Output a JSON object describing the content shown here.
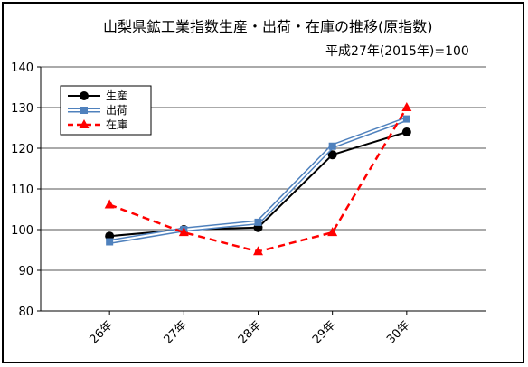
{
  "chart_data": {
    "type": "line",
    "title": "山梨県鉱工業指数生産・出荷・在庫の推移(原指数)",
    "subtitle": "平成27年(2015年)=100",
    "categories": [
      "26年",
      "27年",
      "28年",
      "29年",
      "30年"
    ],
    "ylim": [
      80,
      140
    ],
    "yticks": [
      80,
      90,
      100,
      110,
      120,
      130,
      140
    ],
    "grid": true,
    "legend_position": "top-left",
    "series": [
      {
        "name": "生産",
        "values": [
          98.4,
          100.0,
          100.5,
          118.4,
          124.0
        ],
        "color": "#000000",
        "marker": "circle",
        "style": "solid"
      },
      {
        "name": "出荷",
        "values": [
          97.0,
          100.0,
          101.8,
          120.5,
          127.2
        ],
        "color": "#4f81bd",
        "marker": "square",
        "style": "double"
      },
      {
        "name": "在庫",
        "values": [
          106.1,
          99.3,
          94.6,
          99.3,
          130.0
        ],
        "color": "#ff0000",
        "marker": "triangle",
        "style": "dashed"
      }
    ]
  }
}
